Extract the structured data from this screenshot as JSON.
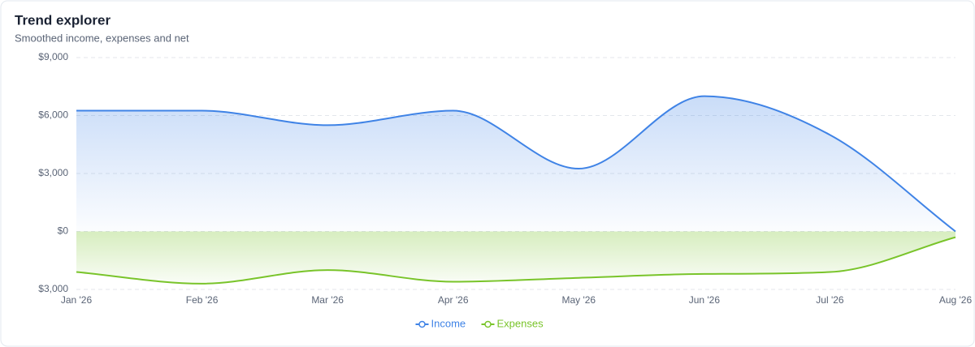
{
  "chart_data": {
    "type": "area-line",
    "title": "Trend explorer",
    "subtitle": "Smoothed income, expenses and net",
    "categories": [
      "Jan '26",
      "Feb '26",
      "Mar '26",
      "Apr '26",
      "May '26",
      "Jun '26",
      "Jul '26",
      "Aug '26"
    ],
    "series": [
      {
        "name": "Income",
        "color": "#3f83e6",
        "values": [
          6250,
          6250,
          5500,
          6250,
          3250,
          7000,
          5000,
          0
        ]
      },
      {
        "name": "Expenses",
        "color": "#79c42a",
        "values": [
          -2100,
          -2700,
          -2000,
          -2600,
          -2400,
          -2200,
          -2100,
          -300
        ]
      }
    ],
    "ylim": [
      -3000,
      9000
    ],
    "yticks": [
      {
        "value": -3000,
        "label": "$3,000"
      },
      {
        "value": 0,
        "label": "$0"
      },
      {
        "value": 3000,
        "label": "$3,000"
      },
      {
        "value": 6000,
        "label": "$6,000"
      },
      {
        "value": 9000,
        "label": "$9,000"
      }
    ],
    "grid": true,
    "legend": "bottom"
  }
}
